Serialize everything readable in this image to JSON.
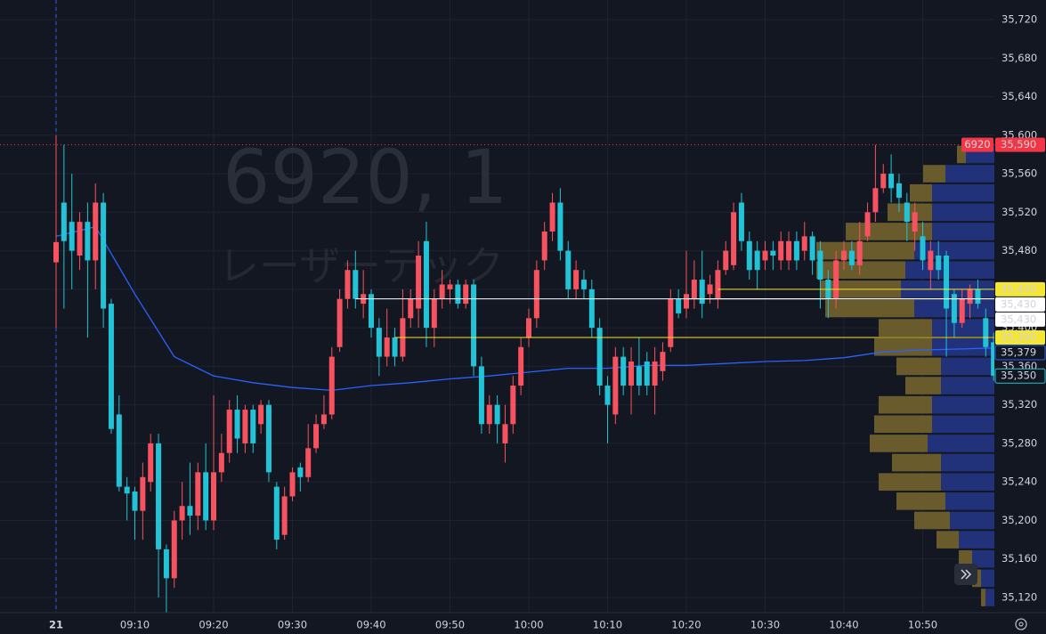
{
  "chart_data": {
    "type": "candlestick",
    "title": "6920, 1",
    "subtitle": "レーザーテック",
    "x": [
      "09:00",
      "09:01",
      "09:02",
      "09:03",
      "09:04",
      "09:05",
      "09:06",
      "09:07",
      "09:08",
      "09:09",
      "09:10",
      "09:11",
      "09:12",
      "09:13",
      "09:14",
      "09:15",
      "09:16",
      "09:17",
      "09:18",
      "09:19",
      "09:20",
      "09:21",
      "09:22",
      "09:23",
      "09:24",
      "09:25",
      "09:26",
      "09:27",
      "09:28",
      "09:29",
      "09:30",
      "09:31",
      "09:32",
      "09:33",
      "09:34",
      "09:35",
      "09:36",
      "09:37",
      "09:38",
      "09:39",
      "09:40",
      "09:41",
      "09:42",
      "09:43",
      "09:44",
      "09:45",
      "09:46",
      "09:47",
      "09:48",
      "09:49",
      "09:50",
      "09:51",
      "09:52",
      "09:53",
      "09:54",
      "09:55",
      "09:56",
      "09:57",
      "09:58",
      "09:59",
      "10:00",
      "10:01",
      "10:02",
      "10:03",
      "10:04",
      "10:05",
      "10:06",
      "10:07",
      "10:08",
      "10:09",
      "10:10",
      "10:11",
      "10:12",
      "10:13",
      "10:14",
      "10:15",
      "10:16",
      "10:17",
      "10:18",
      "10:19",
      "10:20",
      "10:21",
      "10:22",
      "10:23",
      "10:24",
      "10:25",
      "10:26",
      "10:27",
      "10:28",
      "10:29",
      "10:30",
      "10:31",
      "10:32",
      "10:33",
      "10:34",
      "10:35",
      "10:36",
      "10:37",
      "10:38",
      "10:39",
      "10:40",
      "10:41",
      "10:42",
      "10:43",
      "10:44",
      "10:45",
      "10:46",
      "10:47",
      "10:48",
      "10:49",
      "10:50",
      "10:51",
      "10:52",
      "10:53",
      "10:54",
      "10:55",
      "10:56",
      "10:57",
      "10:58",
      "10:59"
    ],
    "open": [
      35468,
      35530,
      35510,
      35475,
      35510,
      35470,
      35530,
      35425,
      35310,
      35235,
      35230,
      35210,
      35240,
      35280,
      35170,
      35140,
      35200,
      35215,
      35205,
      35250,
      35200,
      35250,
      35270,
      35315,
      35280,
      35315,
      35300,
      35320,
      35235,
      35185,
      35225,
      35255,
      35245,
      35275,
      35300,
      35310,
      35380,
      35430,
      35460,
      35425,
      35435,
      35400,
      35370,
      35390,
      35370,
      35410,
      35420,
      35490,
      35400,
      35430,
      35440,
      35445,
      35425,
      35445,
      35360,
      35300,
      35320,
      35280,
      35300,
      35340,
      35390,
      35410,
      35470,
      35500,
      35530,
      35480,
      35440,
      35450,
      35440,
      35400,
      35340,
      35310,
      35370,
      35340,
      35360,
      35365,
      35340,
      35355,
      35380,
      35430,
      35420,
      35430,
      35450,
      35435,
      35430,
      35460,
      35465,
      35530,
      35490,
      35480,
      35470,
      35480,
      35470,
      35470,
      35490,
      35480,
      35495,
      35480,
      35450,
      35430,
      35470,
      35480,
      35465,
      35495,
      35520,
      35545,
      35560,
      35550,
      35530,
      35500,
      35495,
      35460,
      35475,
      35475,
      35435,
      35405,
      35425,
      35440,
      35410,
      35385
    ],
    "high": [
      35600,
      35590,
      35560,
      35520,
      35530,
      35550,
      35540,
      35430,
      35330,
      35245,
      35235,
      35260,
      35290,
      35290,
      35175,
      35210,
      35240,
      35260,
      35260,
      35280,
      35330,
      35290,
      35325,
      35330,
      35320,
      35320,
      35325,
      35325,
      35240,
      35235,
      35255,
      35260,
      35300,
      35310,
      35330,
      35380,
      35440,
      35470,
      35480,
      35460,
      35440,
      35410,
      35420,
      35400,
      35440,
      35440,
      35490,
      35510,
      35440,
      35460,
      35450,
      35450,
      35450,
      35450,
      35370,
      35330,
      35330,
      35320,
      35350,
      35390,
      35420,
      35470,
      35510,
      35540,
      35545,
      35490,
      35470,
      35460,
      35450,
      35410,
      35350,
      35380,
      35380,
      35380,
      35390,
      35375,
      35380,
      35385,
      35440,
      35440,
      35480,
      35470,
      35480,
      35455,
      35470,
      35490,
      35530,
      35540,
      35500,
      35490,
      35490,
      35490,
      35500,
      35500,
      35500,
      35510,
      35500,
      35490,
      35460,
      35480,
      35490,
      35490,
      35510,
      35530,
      35590,
      35570,
      35580,
      35560,
      35540,
      35530,
      35510,
      35490,
      35490,
      35480,
      35440,
      35440,
      35445,
      35450,
      35420,
      35395
    ],
    "low": [
      35400,
      35420,
      35440,
      35460,
      35390,
      35440,
      35400,
      35290,
      35230,
      35200,
      35180,
      35180,
      35230,
      35120,
      35100,
      35130,
      35180,
      35185,
      35190,
      35190,
      35190,
      35240,
      35260,
      35270,
      35270,
      35270,
      35290,
      35240,
      35170,
      35180,
      35220,
      35230,
      35240,
      35270,
      35295,
      35305,
      35375,
      35420,
      35420,
      35410,
      35390,
      35350,
      35360,
      35360,
      35365,
      35400,
      35400,
      35380,
      35380,
      35420,
      35425,
      35420,
      35420,
      35350,
      35290,
      35290,
      35280,
      35260,
      35290,
      35330,
      35380,
      35400,
      35460,
      35490,
      35470,
      35430,
      35430,
      35430,
      35390,
      35330,
      35280,
      35300,
      35330,
      35310,
      35330,
      35330,
      35310,
      35345,
      35375,
      35410,
      35410,
      35420,
      35410,
      35425,
      35420,
      35455,
      35460,
      35480,
      35450,
      35440,
      35460,
      35460,
      35460,
      35460,
      35460,
      35470,
      35455,
      35420,
      35410,
      35420,
      35460,
      35460,
      35455,
      35490,
      35510,
      35540,
      35530,
      35520,
      35490,
      35480,
      35460,
      35440,
      35450,
      35370,
      35390,
      35400,
      35410,
      35420,
      35370,
      35345
    ],
    "close": [
      35489,
      35490,
      35480,
      35510,
      35470,
      35530,
      35420,
      35295,
      35235,
      35228,
      35210,
      35245,
      35280,
      35170,
      35140,
      35200,
      35215,
      35205,
      35250,
      35200,
      35250,
      35270,
      35315,
      35285,
      35315,
      35280,
      35320,
      35250,
      35180,
      35225,
      35250,
      35245,
      35275,
      35300,
      35310,
      35370,
      35430,
      35460,
      35430,
      35435,
      35400,
      35370,
      35390,
      35370,
      35410,
      35430,
      35475,
      35400,
      35430,
      35445,
      35445,
      35425,
      35445,
      35360,
      35300,
      35320,
      35300,
      35300,
      35340,
      35380,
      35410,
      35460,
      35500,
      35530,
      35480,
      35440,
      35460,
      35440,
      35400,
      35340,
      35320,
      35370,
      35340,
      35365,
      35340,
      35340,
      35365,
      35375,
      35430,
      35415,
      35435,
      35450,
      35425,
      35445,
      35460,
      35480,
      35520,
      35490,
      35460,
      35460,
      35480,
      35475,
      35490,
      35490,
      35470,
      35495,
      35470,
      35450,
      35430,
      35470,
      35480,
      35465,
      35490,
      35520,
      35545,
      35560,
      35545,
      35535,
      35510,
      35520,
      35470,
      35480,
      35460,
      35420,
      35405,
      35430,
      35440,
      35425,
      35380,
      35350
    ],
    "up_color": "#f7525f",
    "down_color": "#22c3d6",
    "line": {
      "color": "#2962ff",
      "x": [
        "09:00",
        "09:05",
        "09:10",
        "09:15",
        "09:20",
        "09:25",
        "09:30",
        "09:35",
        "09:40",
        "09:45",
        "09:50",
        "09:55",
        "10:00",
        "10:05",
        "10:10",
        "10:15",
        "10:20",
        "10:25",
        "10:30",
        "10:35",
        "10:40",
        "10:45",
        "10:50",
        "10:55",
        "10:59"
      ],
      "values": [
        35495,
        35505,
        35435,
        35370,
        35350,
        35343,
        35338,
        35335,
        35340,
        35343,
        35347,
        35350,
        35354,
        35358,
        35358,
        35361,
        35361,
        35363,
        35365,
        35366,
        35369,
        35375,
        35377,
        35378,
        35379
      ]
    },
    "profile": {
      "prices": [
        35580,
        35560,
        35540,
        35520,
        35500,
        35480,
        35460,
        35440,
        35420,
        35400,
        35380,
        35360,
        35340,
        35320,
        35300,
        35280,
        35260,
        35240,
        35220,
        35200,
        35180,
        35160,
        35140,
        35120
      ],
      "series": [
        {
          "color": "#6e5f2c",
          "values": [
            10,
            25,
            25,
            50,
            97,
            110,
            100,
            90,
            100,
            60,
            65,
            50,
            40,
            60,
            65,
            65,
            55,
            70,
            55,
            40,
            25,
            15,
            10,
            5
          ]
        },
        {
          "color": "#22347f",
          "values": [
            32,
            55,
            70,
            70,
            70,
            90,
            100,
            105,
            90,
            70,
            70,
            60,
            60,
            70,
            70,
            75,
            60,
            60,
            55,
            50,
            40,
            25,
            15,
            10
          ]
        }
      ]
    },
    "levels": [
      {
        "value": 35440,
        "color": "#f5e633",
        "from": "10:24"
      },
      {
        "value": 35430,
        "color": "#ffffff",
        "from": "09:38"
      },
      {
        "value": 35430,
        "color": "#ffffff",
        "from": "10:20"
      },
      {
        "value": 35390,
        "color": "#f5e633",
        "from": "09:43"
      }
    ],
    "symbol_tag": "6920",
    "price_labels": [
      {
        "value": 35590,
        "label": "35,590",
        "bg": "#f23645",
        "fg": "#ffffff"
      },
      {
        "value": 35440,
        "label": "35,440",
        "bg": "#f5e633",
        "fg": "#000000"
      },
      {
        "value": 35430,
        "label": "35,430",
        "bg": "#ffffff",
        "fg": "#000000"
      },
      {
        "value": 35430,
        "label": "35,430",
        "bg": "#ffffff",
        "fg": "#000000"
      },
      {
        "value": 35390,
        "label": "35,390",
        "bg": "#f5e633",
        "fg": "#000000"
      },
      {
        "value": 35379,
        "label": "35,379",
        "bg": "#131722",
        "fg": "#2962ff"
      },
      {
        "value": 35350,
        "label": "35,350",
        "bg": "#131722",
        "fg": "#22c3d6"
      }
    ],
    "ylim": [
      35120,
      35720
    ],
    "yticks": [
      {
        "value": 35120,
        "label": "35,120"
      },
      {
        "value": 35160,
        "label": "35,160"
      },
      {
        "value": 35200,
        "label": "35,200"
      },
      {
        "value": 35240,
        "label": "35,240"
      },
      {
        "value": 35280,
        "label": "35,280"
      },
      {
        "value": 35320,
        "label": "35,320"
      },
      {
        "value": 35360,
        "label": "35,360"
      },
      {
        "value": 35400,
        "label": "35,400"
      },
      {
        "value": 35440,
        "label": "35,440"
      },
      {
        "value": 35480,
        "label": "35,480"
      },
      {
        "value": 35520,
        "label": "35,520"
      },
      {
        "value": 35560,
        "label": "35,560"
      },
      {
        "value": 35600,
        "label": "35,600"
      },
      {
        "value": 35640,
        "label": "35,640"
      },
      {
        "value": 35680,
        "label": "35,680"
      },
      {
        "value": 35720,
        "label": "35,720"
      }
    ],
    "xticks": [
      {
        "value": "09:00",
        "label": "21"
      },
      "09:10",
      "09:20",
      "09:30",
      "09:40",
      "09:50",
      "10:00",
      "10:10",
      "10:20",
      "10:30",
      "10:40",
      "10:50"
    ],
    "grid": true
  }
}
